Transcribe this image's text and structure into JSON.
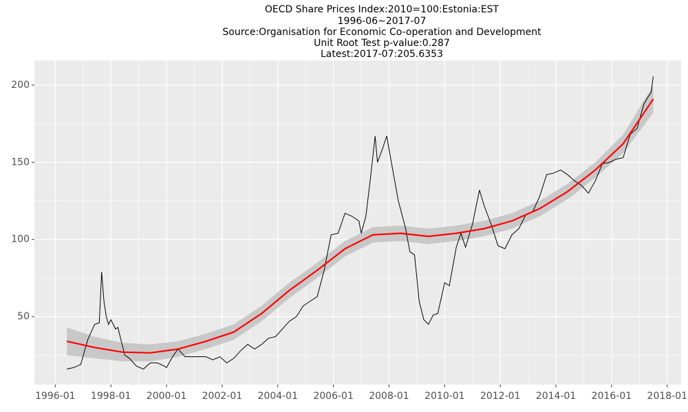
{
  "chart_data": {
    "type": "line",
    "title": "OECD Share Prices Index:2010=100:Estonia:EST",
    "subtitles": [
      "1996-06~2017-07",
      "Source:Organisation for Economic Co-operation and Development",
      "Unit Root Test p-value:0.287",
      "Latest:2017-07:205.6353"
    ],
    "xlim": [
      "1995-04",
      "2018-07"
    ],
    "ylim": [
      6,
      216
    ],
    "xticks": [
      "1996-01",
      "1998-01",
      "2000-01",
      "2002-01",
      "2004-01",
      "2006-01",
      "2008-01",
      "2010-01",
      "2012-01",
      "2014-01",
      "2016-01",
      "2018-01"
    ],
    "minor_xticks": [
      "1997-01",
      "1999-01",
      "2001-01",
      "2003-01",
      "2005-01",
      "2007-01",
      "2009-01",
      "2011-01",
      "2013-01",
      "2015-01",
      "2017-01"
    ],
    "yticks": [
      50,
      100,
      150,
      200
    ],
    "minor_yticks": [
      25,
      75,
      125,
      175
    ],
    "grid": true,
    "series": [
      {
        "color": "#000000",
        "x": [
          "1996-06",
          "1996-09",
          "1996-12",
          "1997-03",
          "1997-06",
          "1997-08",
          "1997-09",
          "1997-10",
          "1997-11",
          "1997-12",
          "1998-01",
          "1998-03",
          "1998-04",
          "1998-07",
          "1998-09",
          "1998-12",
          "1999-03",
          "1999-06",
          "1999-09",
          "1999-12",
          "2000-01",
          "2000-04",
          "2000-06",
          "2000-09",
          "2001-01",
          "2001-06",
          "2001-09",
          "2001-12",
          "2002-03",
          "2002-06",
          "2002-09",
          "2002-12",
          "2003-03",
          "2003-06",
          "2003-09",
          "2003-12",
          "2004-03",
          "2004-06",
          "2004-09",
          "2004-12",
          "2005-03",
          "2005-06",
          "2005-09",
          "2005-12",
          "2006-03",
          "2006-06",
          "2006-09",
          "2006-12",
          "2007-01",
          "2007-03",
          "2007-05",
          "2007-07",
          "2007-08",
          "2007-10",
          "2007-12",
          "2008-02",
          "2008-05",
          "2008-08",
          "2008-10",
          "2008-12",
          "2009-02",
          "2009-04",
          "2009-06",
          "2009-08",
          "2009-10",
          "2010-01",
          "2010-03",
          "2010-06",
          "2010-08",
          "2010-10",
          "2011-01",
          "2011-04",
          "2011-06",
          "2011-09",
          "2011-12",
          "2012-03",
          "2012-06",
          "2012-09",
          "2012-12",
          "2013-03",
          "2013-06",
          "2013-09",
          "2013-12",
          "2014-03",
          "2014-06",
          "2014-09",
          "2014-12",
          "2015-03",
          "2015-06",
          "2015-09",
          "2015-12",
          "2016-03",
          "2016-06",
          "2016-09",
          "2016-12",
          "2017-03",
          "2017-05",
          "2017-06",
          "2017-07"
        ],
        "values": [
          16,
          17,
          19,
          35,
          45,
          46,
          79,
          60,
          50,
          45,
          48,
          42,
          43,
          25,
          23,
          18,
          16,
          20,
          20,
          18,
          17,
          25,
          29,
          24,
          24,
          24,
          22,
          24,
          20,
          23,
          28,
          32,
          29,
          32,
          36,
          37,
          42,
          47,
          50,
          57,
          60,
          63,
          80,
          103,
          104,
          117,
          115,
          112,
          104,
          115,
          140,
          167,
          150,
          158,
          167,
          150,
          125,
          108,
          92,
          90,
          60,
          48,
          45,
          51,
          52,
          72,
          70,
          95,
          104,
          95,
          110,
          132,
          122,
          110,
          96,
          94,
          103,
          107,
          116,
          118,
          128,
          142,
          143,
          145,
          142,
          138,
          135,
          130,
          138,
          149,
          150,
          152,
          153,
          168,
          172,
          188,
          193,
          195,
          205.6353
        ]
      },
      {
        "color": "#ff0000",
        "band_color": "#c8c8c8",
        "x": [
          "1996-06",
          "1997-06",
          "1998-06",
          "1999-06",
          "2000-06",
          "2001-06",
          "2002-06",
          "2003-06",
          "2004-06",
          "2005-06",
          "2006-06",
          "2007-06",
          "2008-06",
          "2009-06",
          "2010-06",
          "2011-06",
          "2012-06",
          "2013-06",
          "2014-06",
          "2015-06",
          "2016-06",
          "2017-07"
        ],
        "values": [
          34,
          30,
          27,
          26.5,
          29,
          34,
          40,
          52,
          67,
          80,
          94,
          103,
          104,
          102,
          104,
          107,
          112,
          120,
          131,
          145,
          162,
          191
        ],
        "lower": [
          25,
          23,
          21,
          21,
          24,
          29,
          35,
          47,
          62,
          75,
          89,
          98,
          99,
          97,
          99,
          102,
          107,
          115,
          126,
          140,
          156,
          182
        ],
        "upper": [
          43,
          37,
          33,
          32,
          34,
          39,
          45,
          57,
          72,
          85,
          99,
          108,
          109,
          107,
          109,
          112,
          117,
          125,
          136,
          150,
          168,
          200
        ]
      }
    ]
  }
}
